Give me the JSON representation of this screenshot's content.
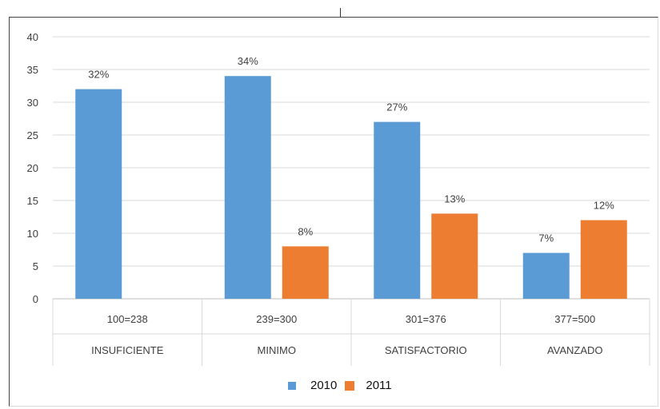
{
  "chart_data": {
    "type": "bar",
    "title": "",
    "xlabel": "",
    "ylabel": "",
    "ylim": [
      0,
      40
    ],
    "yticks": [
      0,
      5,
      10,
      15,
      20,
      25,
      30,
      35,
      40
    ],
    "grid": true,
    "legend_placement": "bottom",
    "categories": [
      {
        "range": "100=238",
        "label": "INSUFICIENTE"
      },
      {
        "range": "239=300",
        "label": "MINIMO"
      },
      {
        "range": "301=376",
        "label": "SATISFACTORIO"
      },
      {
        "range": "377=500",
        "label": "AVANZADO"
      }
    ],
    "series": [
      {
        "name": "2010",
        "color": "#5b9bd5",
        "values": [
          32,
          34,
          27,
          7
        ],
        "labels": [
          "32%",
          "34%",
          "27%",
          "7%"
        ]
      },
      {
        "name": "2011",
        "color": "#ed7d31",
        "values": [
          null,
          8,
          13,
          12
        ],
        "labels": [
          "",
          "8%",
          "13%",
          "12%"
        ]
      }
    ]
  },
  "legend": {
    "items": [
      {
        "name": "2010",
        "color": "#5b9bd5"
      },
      {
        "name": "2011",
        "color": "#ed7d31"
      }
    ]
  }
}
